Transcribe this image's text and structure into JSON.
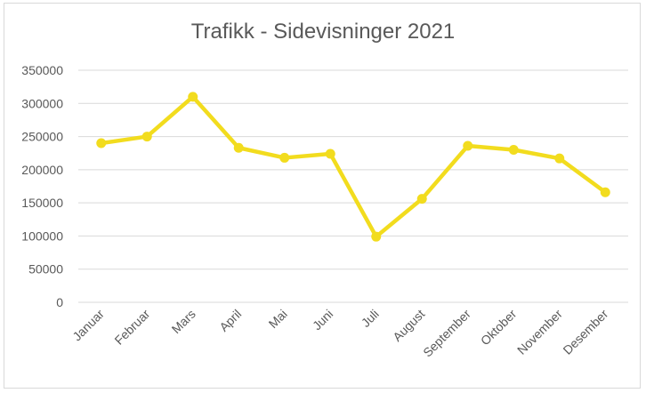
{
  "chart_data": {
    "type": "line",
    "title": "Trafikk - Sidevisninger 2021",
    "categories": [
      "Januar",
      "Februar",
      "Mars",
      "April",
      "Mai",
      "Juni",
      "Juli",
      "August",
      "September",
      "Oktober",
      "November",
      "Desember"
    ],
    "series": [
      {
        "values": [
          240000,
          250000,
          310000,
          233000,
          218000,
          224000,
          99000,
          156000,
          236000,
          230000,
          217000,
          166000
        ]
      }
    ],
    "yticks": [
      "0",
      "50000",
      "100000",
      "150000",
      "200000",
      "250000",
      "300000",
      "350000"
    ],
    "ylim": [
      0,
      350000
    ],
    "grid": true,
    "legend": "none",
    "color": "#f2dc1e",
    "gridColor": "#d9d9d9"
  }
}
